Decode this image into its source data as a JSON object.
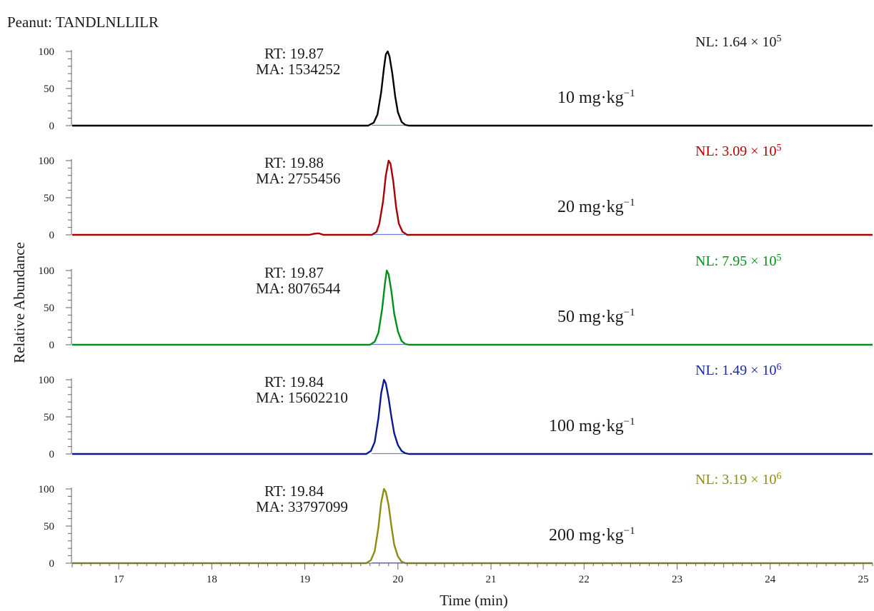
{
  "title": "Peanut: TANDLNLLILR",
  "y_axis_label": "Relative Abundance",
  "x_axis_label": "Time (min)",
  "nl_prefix": "NL: ",
  "nl_times": " × 10",
  "rt_prefix": "RT: ",
  "ma_prefix": "MA: ",
  "conc_unit": " mg·kg",
  "conc_unit_sup": "−1",
  "chart_data": {
    "type": "line",
    "title": "Peanut: TANDLNLLILR",
    "xlabel": "Time (min)",
    "ylabel": "Relative Abundance",
    "xlim": [
      16.5,
      25.1
    ],
    "ylim": [
      0,
      100
    ],
    "x_ticks": [
      17,
      18,
      19,
      20,
      21,
      22,
      23,
      24,
      25
    ],
    "y_ticks": [
      0,
      50,
      100
    ],
    "series": [
      {
        "concentration": "10",
        "nl_mantissa": "1.64",
        "nl_exp": "5",
        "rt": "19.87",
        "ma": "1534252",
        "color": "#000000",
        "nl_color": "#1a1a1a",
        "points": [
          [
            16.5,
            0
          ],
          [
            19.68,
            0
          ],
          [
            19.74,
            4
          ],
          [
            19.78,
            15
          ],
          [
            19.82,
            45
          ],
          [
            19.85,
            78
          ],
          [
            19.87,
            96
          ],
          [
            19.89,
            100
          ],
          [
            19.91,
            93
          ],
          [
            19.94,
            70
          ],
          [
            19.97,
            40
          ],
          [
            20.0,
            18
          ],
          [
            20.04,
            5
          ],
          [
            20.08,
            1
          ],
          [
            20.12,
            0
          ],
          [
            25.1,
            0
          ]
        ]
      },
      {
        "concentration": "20",
        "nl_mantissa": "3.09",
        "nl_exp": "5",
        "rt": "19.88",
        "ma": "2755456",
        "color": "#a80000",
        "nl_color": "#b00000",
        "points": [
          [
            16.5,
            0
          ],
          [
            19.05,
            0
          ],
          [
            19.1,
            1.5
          ],
          [
            19.15,
            2
          ],
          [
            19.2,
            0
          ],
          [
            19.72,
            0
          ],
          [
            19.77,
            4
          ],
          [
            19.8,
            15
          ],
          [
            19.84,
            45
          ],
          [
            19.87,
            80
          ],
          [
            19.9,
            100
          ],
          [
            19.92,
            96
          ],
          [
            19.95,
            72
          ],
          [
            19.98,
            38
          ],
          [
            20.01,
            15
          ],
          [
            20.05,
            4
          ],
          [
            20.1,
            0
          ],
          [
            25.1,
            0
          ]
        ]
      },
      {
        "concentration": "50",
        "nl_mantissa": "7.95",
        "nl_exp": "5",
        "rt": "19.87",
        "ma": "8076544",
        "color": "#00901a",
        "nl_color": "#00901a",
        "points": [
          [
            16.5,
            0
          ],
          [
            19.7,
            0
          ],
          [
            19.75,
            4
          ],
          [
            19.79,
            16
          ],
          [
            19.83,
            48
          ],
          [
            19.86,
            82
          ],
          [
            19.88,
            100
          ],
          [
            19.9,
            95
          ],
          [
            19.93,
            72
          ],
          [
            19.96,
            42
          ],
          [
            20.0,
            18
          ],
          [
            20.04,
            5
          ],
          [
            20.08,
            1
          ],
          [
            20.12,
            0
          ],
          [
            25.1,
            0
          ]
        ]
      },
      {
        "concentration": "100",
        "nl_mantissa": "1.49",
        "nl_exp": "6",
        "rt": "19.84",
        "ma": "15602210",
        "color": "#0a1a8c",
        "nl_color": "#1a2a9c",
        "points": [
          [
            16.5,
            0
          ],
          [
            19.66,
            0
          ],
          [
            19.71,
            4
          ],
          [
            19.75,
            16
          ],
          [
            19.79,
            48
          ],
          [
            19.82,
            82
          ],
          [
            19.85,
            100
          ],
          [
            19.87,
            95
          ],
          [
            19.9,
            75
          ],
          [
            19.93,
            50
          ],
          [
            19.96,
            28
          ],
          [
            20.0,
            12
          ],
          [
            20.04,
            4
          ],
          [
            20.08,
            1
          ],
          [
            20.12,
            0
          ],
          [
            25.1,
            0
          ]
        ]
      },
      {
        "concentration": "200",
        "nl_mantissa": "3.19",
        "nl_exp": "6",
        "rt": "19.84",
        "ma": "33797099",
        "color": "#8c8c10",
        "nl_color": "#8c8c10",
        "points": [
          [
            16.5,
            0
          ],
          [
            19.66,
            0
          ],
          [
            19.71,
            4
          ],
          [
            19.75,
            16
          ],
          [
            19.79,
            48
          ],
          [
            19.82,
            82
          ],
          [
            19.85,
            100
          ],
          [
            19.87,
            96
          ],
          [
            19.9,
            78
          ],
          [
            19.93,
            50
          ],
          [
            19.96,
            25
          ],
          [
            20.0,
            9
          ],
          [
            20.04,
            2
          ],
          [
            20.08,
            0
          ],
          [
            25.1,
            0
          ]
        ]
      }
    ]
  }
}
